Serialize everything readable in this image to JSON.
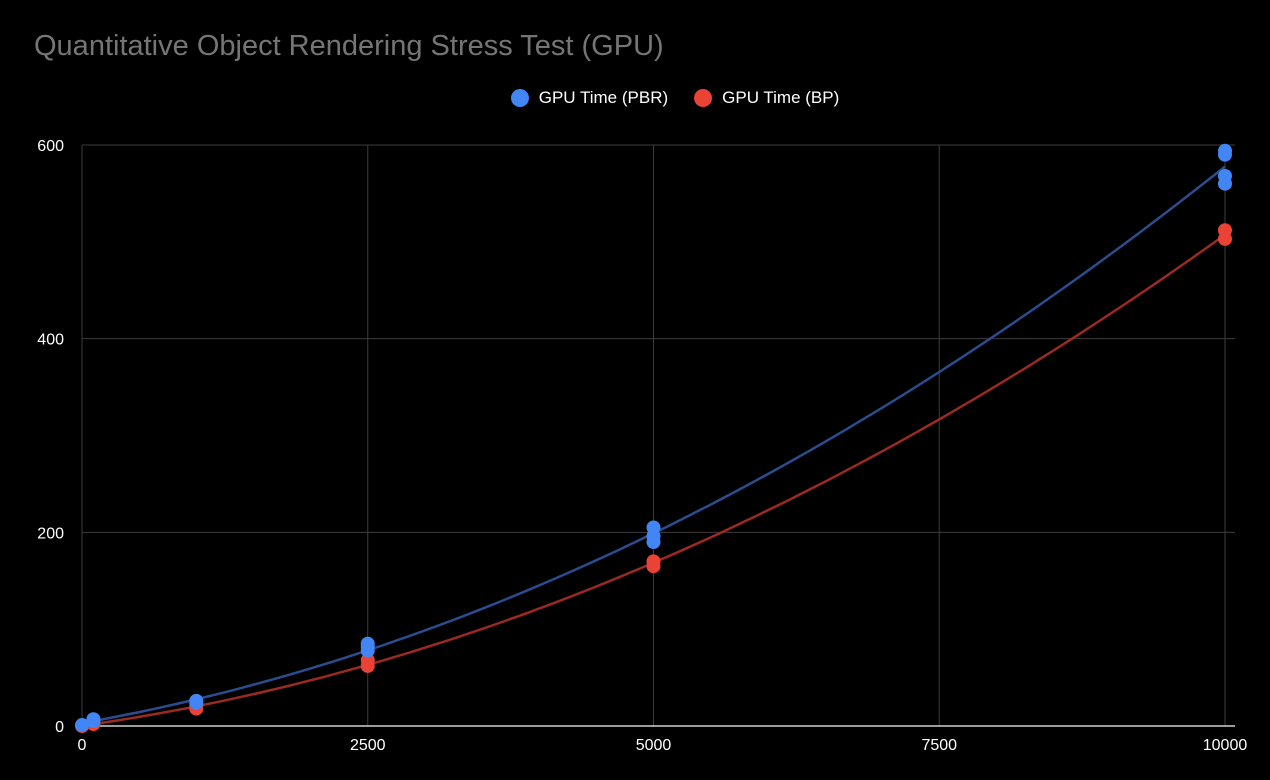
{
  "chart_data": {
    "type": "scatter",
    "title": "Quantitative Object Rendering Stress Test (GPU)",
    "xlabel": "",
    "ylabel": "",
    "xlim": [
      0,
      10000
    ],
    "ylim": [
      0,
      600
    ],
    "x_ticks": [
      0,
      2500,
      5000,
      7500,
      10000
    ],
    "y_ticks": [
      0,
      200,
      400,
      600
    ],
    "grid": true,
    "legend_position": "top",
    "series": [
      {
        "name": "GPU Time (PBR)",
        "color": "#4285f4",
        "trendline_color": "#2a4d8f",
        "points": [
          [
            0,
            1
          ],
          [
            100,
            5
          ],
          [
            100,
            7
          ],
          [
            1000,
            24
          ],
          [
            1000,
            26
          ],
          [
            2500,
            78
          ],
          [
            2500,
            82
          ],
          [
            2500,
            85
          ],
          [
            5000,
            190
          ],
          [
            5000,
            196
          ],
          [
            5000,
            205
          ],
          [
            10000,
            560
          ],
          [
            10000,
            568
          ],
          [
            10000,
            590
          ],
          [
            10000,
            594
          ]
        ]
      },
      {
        "name": "GPU Time (BP)",
        "color": "#ea4335",
        "trendline_color": "#9b2a22",
        "points": [
          [
            0,
            0
          ],
          [
            100,
            2
          ],
          [
            1000,
            18
          ],
          [
            1000,
            21
          ],
          [
            2500,
            62
          ],
          [
            2500,
            68
          ],
          [
            5000,
            165
          ],
          [
            5000,
            170
          ],
          [
            10000,
            503
          ],
          [
            10000,
            512
          ]
        ]
      }
    ]
  }
}
